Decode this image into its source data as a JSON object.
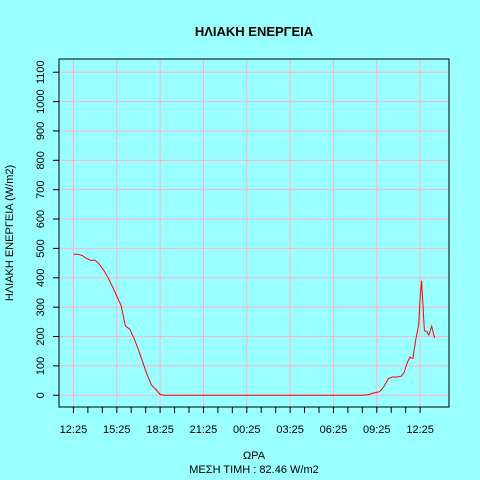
{
  "chart_data": {
    "type": "line",
    "title": "ΗΛΙΑΚΗ ΕΝΕΡΓΕΙΑ",
    "xlabel": "ΩΡΑ",
    "subtitle": "ΜΕΣΗ ΤΙΜΗ : 82.46 W/m2",
    "ylabel": "ΗΛΙΑΚΗ ΕΝΕΡΓΕΙΑ (W/m2)",
    "x_unit": "hours elapsed from 12:25",
    "x_tick_labels": [
      "12:25",
      "15:25",
      "18:25",
      "21:25",
      "00:25",
      "03:25",
      "06:25",
      "09:25",
      "12:25"
    ],
    "y_ticks": [
      0,
      100,
      200,
      300,
      400,
      500,
      600,
      700,
      800,
      900,
      1000,
      1100
    ],
    "xlim": [
      -1,
      26
    ],
    "ylim": [
      -40,
      1145
    ],
    "grid": true,
    "line_color": "#ff0000",
    "grid_color": "#ffb0c8",
    "series": [
      {
        "x": [
          0.0,
          0.3,
          0.6,
          0.9,
          1.2,
          1.5,
          1.8,
          2.1,
          2.4,
          2.7,
          3.0,
          3.3,
          3.6,
          3.9,
          4.2,
          4.5,
          4.8,
          5.1,
          5.4,
          5.7,
          6.0,
          6.3,
          6.6,
          8.0,
          10.0,
          12.0,
          14.0,
          16.0,
          18.0,
          20.0,
          20.4,
          20.8,
          21.2,
          21.5,
          21.8,
          22.1,
          22.4,
          22.7,
          22.9,
          23.1,
          23.3,
          23.5,
          23.7,
          23.9,
          24.0,
          24.1,
          24.3,
          24.5,
          24.6,
          24.8,
          25.0
        ],
        "y": [
          480,
          480,
          476,
          466,
          460,
          460,
          446,
          425,
          400,
          370,
          338,
          305,
          236,
          225,
          193,
          155,
          112,
          70,
          35,
          20,
          3,
          0,
          0,
          0,
          0,
          0,
          0,
          0,
          0,
          0,
          2,
          8,
          12,
          30,
          57,
          62,
          62,
          65,
          78,
          110,
          130,
          125,
          190,
          240,
          330,
          390,
          220,
          215,
          205,
          235,
          195
        ]
      }
    ]
  }
}
